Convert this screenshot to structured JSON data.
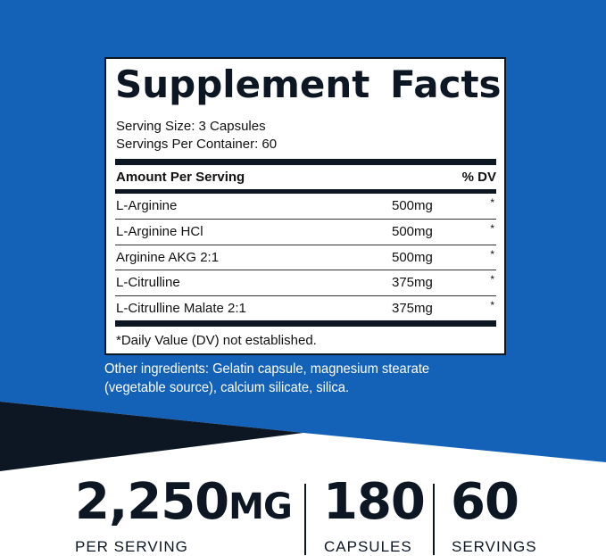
{
  "colors": {
    "brand_blue": "#1461b8",
    "navy": "#0d1724"
  },
  "label": {
    "title": "Supplement Facts",
    "serving_size": "Serving Size: 3 Capsules",
    "servings_per_container": "Servings Per Container: 60",
    "amount_header": "Amount Per Serving",
    "dv_header": "% DV",
    "rows": [
      {
        "name": "L-Arginine",
        "amount": "500mg",
        "dv": "*"
      },
      {
        "name": "L-Arginine HCl",
        "amount": "500mg",
        "dv": "*"
      },
      {
        "name": "Arginine AKG 2:1",
        "amount": "500mg",
        "dv": "*"
      },
      {
        "name": "L-Citrulline",
        "amount": "375mg",
        "dv": "*"
      },
      {
        "name": "L-Citrulline Malate 2:1",
        "amount": "375mg",
        "dv": "*"
      }
    ],
    "footnote": "*Daily Value (DV) not established."
  },
  "other_ingredients": {
    "line1": "Other ingredients: Gelatin capsule, magnesium stearate",
    "line2": "(vegetable source), calcium silicate, silica."
  },
  "stats": [
    {
      "value": "2,250",
      "unit": "MG",
      "label": "PER SERVING"
    },
    {
      "value": "180",
      "label": "CAPSULES"
    },
    {
      "value": "60",
      "label": "SERVINGS"
    }
  ]
}
